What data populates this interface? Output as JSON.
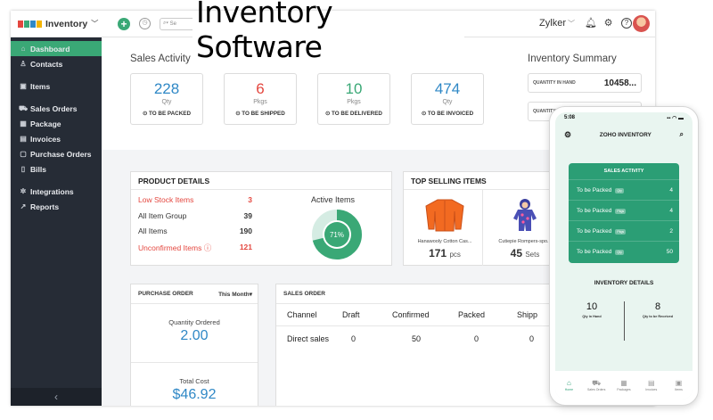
{
  "overlay_title": "Inventory Software",
  "brand": {
    "name": "Inventory",
    "logo_colors": [
      "#e4473f",
      "#3aa876",
      "#2f88c6",
      "#f4b400"
    ]
  },
  "colors": {
    "accent": "#3aa876",
    "alert": "#e4473f",
    "value_blue": "#2f88c6",
    "sidebar": "#262c36"
  },
  "sidebar": {
    "items": [
      {
        "label": "Dashboard",
        "icon": "home-icon",
        "glyph": "⌂"
      },
      {
        "label": "Contacts",
        "icon": "user-icon",
        "glyph": "♙"
      },
      {
        "label": "Items",
        "icon": "box-icon",
        "glyph": "▣"
      },
      {
        "label": "Sales Orders",
        "icon": "cart-icon",
        "glyph": "⛟"
      },
      {
        "label": "Package",
        "icon": "package-icon",
        "glyph": "▦"
      },
      {
        "label": "Invoices",
        "icon": "invoice-icon",
        "glyph": "▤"
      },
      {
        "label": "Purchase Orders",
        "icon": "bag-icon",
        "glyph": "▢"
      },
      {
        "label": "Bills",
        "icon": "bill-icon",
        "glyph": "▯"
      },
      {
        "label": "Integrations",
        "icon": "integrations-icon",
        "glyph": "✲"
      },
      {
        "label": "Reports",
        "icon": "reports-icon",
        "glyph": "↗"
      }
    ]
  },
  "topbar": {
    "search_placeholder": "Se",
    "org_name": "Zylker"
  },
  "sales_activity": {
    "title": "Sales Activity",
    "stats": [
      {
        "value": "228",
        "unit": "Qty",
        "label": "TO BE PACKED",
        "color": "#2f88c6"
      },
      {
        "value": "6",
        "unit": "Pkgs",
        "label": "TO BE SHIPPED",
        "color": "#e4473f"
      },
      {
        "value": "10",
        "unit": "Pkgs",
        "label": "TO BE DELIVERED",
        "color": "#3aa876"
      },
      {
        "value": "474",
        "unit": "Qty",
        "label": "TO BE INVOICED",
        "color": "#2f88c6"
      }
    ]
  },
  "inventory_summary": {
    "title": "Inventory Summary",
    "quantity_in_hand_label": "QUANTITY IN HAND",
    "quantity_in_hand_value": "10458...",
    "second_row_label": "QUANTITY"
  },
  "product_details": {
    "title": "PRODUCT DETAILS",
    "rows": [
      {
        "label": "Low Stock Items",
        "value": "3",
        "alert": true
      },
      {
        "label": "All Item Group",
        "value": "39",
        "alert": false
      },
      {
        "label": "All Items",
        "value": "190",
        "alert": false
      },
      {
        "label": "Unconfirmed Items ⓘ",
        "value": "121",
        "alert": true
      }
    ],
    "active_items_title": "Active Items",
    "active_items_percent": 71,
    "active_items_label": "71%"
  },
  "top_selling": {
    "title": "TOP SELLING ITEMS",
    "items": [
      {
        "name": "Hanawooly Cotton Cas...",
        "qty": "171",
        "unit": "pcs"
      },
      {
        "name": "Cutiepie Rompers-spo...",
        "qty": "45",
        "unit": "Sets"
      }
    ]
  },
  "purchase_order": {
    "title": "PURCHASE ORDER",
    "period": "This Month",
    "qty_label": "Quantity Ordered",
    "qty_value": "2.00",
    "cost_label": "Total Cost",
    "cost_value": "$46.92"
  },
  "sales_order": {
    "title": "SALES ORDER",
    "columns": [
      "Channel",
      "Draft",
      "Confirmed",
      "Packed",
      "Shipp"
    ],
    "rows": [
      [
        "Direct sales",
        "0",
        "50",
        "0",
        "0"
      ]
    ]
  },
  "phone": {
    "time": "5:08",
    "signal": "▪▪ ◠ ▬",
    "app_title": "ZOHO INVENTORY",
    "sales_activity_title": "SALES ACTIVITY",
    "rows": [
      {
        "label": "To be Packed",
        "tag": "Qty",
        "value": "4"
      },
      {
        "label": "To be Packed",
        "tag": "Pkgs",
        "value": "4"
      },
      {
        "label": "To be Packed",
        "tag": "Pkgs",
        "value": "2"
      },
      {
        "label": "To be Packed",
        "tag": "Qty",
        "value": "50"
      }
    ],
    "inventory_details_title": "INVENTORY DETAILS",
    "in_hand_value": "10",
    "in_hand_label": "Qty in Hand",
    "to_receive_value": "8",
    "to_receive_label": "Qty to be Received",
    "tabs": [
      "Home",
      "Sales Orders",
      "Packages",
      "Invoices",
      "Items"
    ]
  }
}
